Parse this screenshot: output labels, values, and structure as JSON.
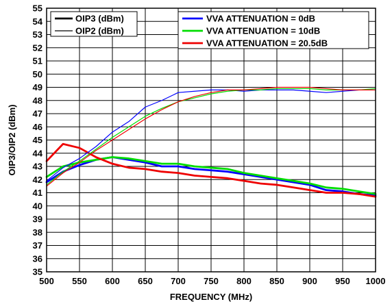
{
  "chart_data": {
    "type": "line",
    "title": "",
    "xlabel": "FREQUENCY (MHz)",
    "ylabel": "OIP3/OIP2 (dBm)",
    "xlim": [
      500,
      1000
    ],
    "ylim": [
      35,
      55
    ],
    "x_ticks": [
      "500",
      "550",
      "600",
      "650",
      "700",
      "750",
      "800",
      "850",
      "900",
      "950",
      "1000"
    ],
    "y_ticks": [
      "35",
      "36",
      "37",
      "38",
      "39",
      "40",
      "41",
      "42",
      "43",
      "44",
      "45",
      "46",
      "47",
      "48",
      "49",
      "50",
      "51",
      "52",
      "53",
      "54",
      "55"
    ],
    "grid": true,
    "legend_line_style": [
      {
        "label": "OIP3 (dBm)",
        "style": "thick"
      },
      {
        "label": "OIP2 (dBm)",
        "style": "thin"
      }
    ],
    "legend_colors": [
      {
        "label": "VVA ATTENUATION = 0dB",
        "color": "#0000ff"
      },
      {
        "label": "VVA ATTENUATION = 10dB",
        "color": "#00dd00"
      },
      {
        "label": "VVA ATTENUATION = 20.5dB",
        "color": "#ee0000"
      }
    ],
    "x": [
      500,
      525,
      550,
      575,
      600,
      625,
      650,
      675,
      700,
      725,
      750,
      775,
      800,
      825,
      850,
      875,
      900,
      925,
      950,
      975,
      1000
    ],
    "series": [
      {
        "name": "OIP3 (dBm), VVA ATTENUATION = 0dB",
        "color": "#0000ff",
        "metric": "OIP3",
        "width": 2.8,
        "values": [
          41.8,
          42.6,
          43.1,
          43.5,
          43.7,
          43.5,
          43.3,
          43.0,
          43.0,
          42.8,
          42.7,
          42.6,
          42.4,
          42.2,
          42.0,
          41.8,
          41.6,
          41.2,
          41.1,
          40.9,
          40.8
        ]
      },
      {
        "name": "OIP3 (dBm), VVA ATTENUATION = 10dB",
        "color": "#00dd00",
        "metric": "OIP3",
        "width": 2.8,
        "values": [
          42.2,
          43.0,
          43.3,
          43.5,
          43.7,
          43.6,
          43.4,
          43.2,
          43.2,
          43.0,
          42.9,
          42.8,
          42.5,
          42.3,
          42.1,
          41.9,
          41.7,
          41.4,
          41.3,
          41.1,
          40.9
        ]
      },
      {
        "name": "OIP3 (dBm), VVA ATTENUATION = 20.5dB",
        "color": "#ee0000",
        "metric": "OIP3",
        "width": 2.8,
        "values": [
          43.4,
          44.7,
          44.4,
          43.7,
          43.2,
          42.9,
          42.8,
          42.6,
          42.5,
          42.3,
          42.2,
          42.1,
          41.9,
          41.7,
          41.6,
          41.4,
          41.2,
          41.0,
          41.0,
          40.9,
          40.7
        ]
      },
      {
        "name": "OIP2 (dBm), VVA ATTENUATION = 0dB",
        "color": "#0000ff",
        "metric": "OIP2",
        "width": 1.2,
        "values": [
          41.9,
          42.9,
          43.6,
          44.5,
          45.6,
          46.4,
          47.5,
          48.0,
          48.6,
          48.7,
          48.8,
          48.8,
          48.7,
          48.8,
          48.8,
          48.8,
          48.7,
          48.6,
          48.7,
          48.8,
          48.8
        ]
      },
      {
        "name": "OIP2 (dBm), VVA ATTENUATION = 10dB",
        "color": "#00dd00",
        "metric": "OIP2",
        "width": 1.2,
        "values": [
          41.6,
          42.6,
          43.4,
          44.3,
          45.2,
          46.0,
          46.8,
          47.4,
          47.9,
          48.2,
          48.5,
          48.7,
          48.8,
          48.8,
          48.9,
          48.9,
          48.9,
          48.8,
          48.8,
          48.8,
          48.9
        ]
      },
      {
        "name": "OIP2 (dBm), VVA ATTENUATION = 20.5dB",
        "color": "#ee0000",
        "metric": "OIP2",
        "width": 1.2,
        "values": [
          41.5,
          42.5,
          43.3,
          44.2,
          45.0,
          45.8,
          46.6,
          47.3,
          47.9,
          48.3,
          48.6,
          48.8,
          48.8,
          48.9,
          49.0,
          49.0,
          49.0,
          48.9,
          48.8,
          48.8,
          48.8
        ]
      }
    ]
  }
}
